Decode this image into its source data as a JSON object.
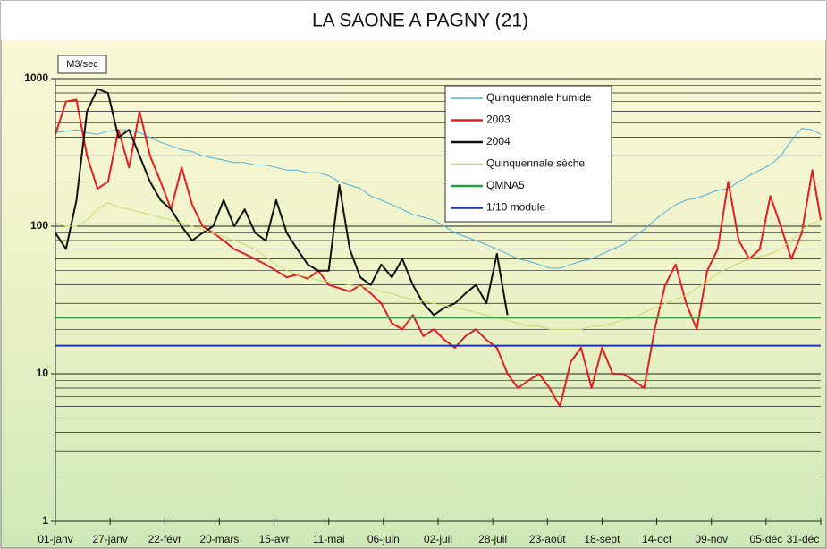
{
  "chart_data": {
    "type": "line",
    "title": "LA SAONE A PAGNY (21)",
    "y_label": "M3/sec",
    "yscale": "log",
    "grid": true,
    "x": [
      0,
      5,
      10,
      15,
      20,
      25,
      30,
      35,
      40,
      45,
      50,
      55,
      60,
      65,
      70,
      75,
      80,
      85,
      90,
      95,
      100,
      105,
      110,
      115,
      120,
      125,
      130,
      135,
      140,
      145,
      150,
      155,
      160,
      165,
      170,
      175,
      180,
      185,
      190,
      195,
      200,
      205,
      210,
      215,
      220,
      225,
      230,
      235,
      240,
      245,
      250,
      255,
      260,
      265,
      270,
      275,
      280,
      285,
      290,
      295,
      300,
      305,
      310,
      315,
      320,
      325,
      330,
      335,
      340,
      345,
      350,
      355,
      360,
      364
    ],
    "xlim": [
      0,
      364
    ],
    "xticks": [
      {
        "value": 0,
        "label": "01-janv"
      },
      {
        "value": 26,
        "label": "27-janv"
      },
      {
        "value": 52,
        "label": "22-févr"
      },
      {
        "value": 78,
        "label": "20-mars"
      },
      {
        "value": 104,
        "label": "15-avr"
      },
      {
        "value": 130,
        "label": "11-mai"
      },
      {
        "value": 156,
        "label": "06-juin"
      },
      {
        "value": 182,
        "label": "02-juil"
      },
      {
        "value": 208,
        "label": "28-juil"
      },
      {
        "value": 234,
        "label": "23-août"
      },
      {
        "value": 260,
        "label": "18-sept"
      },
      {
        "value": 286,
        "label": "14-oct"
      },
      {
        "value": 312,
        "label": "09-nov"
      },
      {
        "value": 338,
        "label": "05-déc"
      },
      {
        "value": 364,
        "label": "31-déc"
      }
    ],
    "ylim": [
      1,
      1000
    ],
    "yticks": [
      1,
      10,
      100,
      1000
    ],
    "y_minor_ticks": [
      2,
      3,
      4,
      5,
      6,
      7,
      8,
      9,
      20,
      30,
      40,
      50,
      60,
      70,
      80,
      90,
      200,
      300,
      400,
      500,
      600,
      700,
      800,
      900
    ],
    "series": [
      {
        "name": "Quinquennale humide",
        "color": "#4fb0e0",
        "width": 1,
        "values": [
          430,
          440,
          450,
          430,
          420,
          440,
          450,
          450,
          430,
          400,
          370,
          350,
          330,
          320,
          300,
          290,
          280,
          270,
          270,
          260,
          260,
          250,
          240,
          240,
          230,
          230,
          220,
          200,
          190,
          180,
          160,
          150,
          140,
          130,
          120,
          115,
          110,
          100,
          90,
          85,
          80,
          75,
          70,
          65,
          60,
          58,
          55,
          52,
          52,
          55,
          58,
          60,
          65,
          70,
          75,
          85,
          95,
          110,
          125,
          140,
          150,
          155,
          165,
          175,
          180,
          200,
          220,
          240,
          260,
          300,
          380,
          460,
          450,
          420
        ]
      },
      {
        "name": "2003",
        "color": "#e02020",
        "width": 2,
        "values": [
          420,
          700,
          720,
          300,
          180,
          200,
          450,
          250,
          600,
          300,
          200,
          130,
          250,
          140,
          100,
          90,
          80,
          70,
          65,
          60,
          55,
          50,
          45,
          47,
          44,
          50,
          40,
          38,
          36,
          40,
          35,
          30,
          22,
          20,
          25,
          18,
          20,
          17,
          15,
          18,
          20,
          17,
          15,
          10,
          8,
          9,
          10,
          8,
          6,
          12,
          15,
          8,
          15,
          10,
          10,
          9,
          8,
          20,
          40,
          55,
          30,
          20,
          50,
          70,
          200,
          80,
          60,
          70,
          160,
          100,
          60,
          90,
          240,
          110
        ]
      },
      {
        "name": "2004",
        "color": "#101010",
        "width": 2,
        "values": [
          90,
          70,
          150,
          600,
          850,
          800,
          400,
          450,
          300,
          200,
          150,
          130,
          100,
          80,
          90,
          100,
          150,
          100,
          130,
          90,
          80,
          150,
          90,
          70,
          55,
          50,
          50,
          190,
          70,
          45,
          40,
          55,
          45,
          60,
          40,
          30,
          25,
          28,
          30,
          35,
          40,
          30,
          65,
          25,
          null,
          null,
          null,
          null,
          null,
          null,
          null,
          null,
          null,
          null,
          null,
          null,
          null,
          null,
          null,
          null,
          null,
          null,
          null,
          null,
          null,
          null,
          null,
          null,
          null,
          null,
          null,
          null,
          null,
          null
        ]
      },
      {
        "name": "Quinquennale sèche",
        "color": "#c8d870",
        "width": 1,
        "values": [
          105,
          100,
          100,
          110,
          130,
          145,
          135,
          130,
          125,
          120,
          115,
          110,
          105,
          100,
          95,
          90,
          85,
          80,
          75,
          70,
          62,
          55,
          50,
          47,
          45,
          43,
          42,
          41,
          40,
          39,
          38,
          36,
          35,
          33,
          32,
          31,
          30,
          29,
          28,
          27,
          26,
          25,
          24,
          23,
          22,
          21,
          21,
          20,
          20,
          20,
          20,
          21,
          21,
          22,
          23,
          24,
          26,
          28,
          30,
          32,
          34,
          38,
          42,
          48,
          52,
          56,
          60,
          62,
          65,
          70,
          80,
          95,
          105,
          110
        ]
      },
      {
        "name": "QMNA5",
        "color": "#20a040",
        "width": 2,
        "value": 24
      },
      {
        "name": "1/10 module",
        "color": "#2030b0",
        "width": 2,
        "value": 15.5
      }
    ]
  }
}
